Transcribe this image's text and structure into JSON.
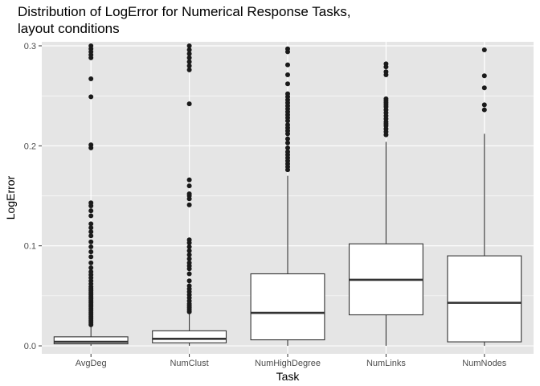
{
  "chart_data": {
    "type": "boxplot",
    "title_lines": [
      "Distribution of LogError for Numerical Response Tasks,",
      "layout conditions"
    ],
    "xlabel": "Task",
    "ylabel": "LogError",
    "ylim": [
      -0.008,
      0.304
    ],
    "y_ticks": [
      0.0,
      0.1,
      0.2,
      0.3
    ],
    "y_tick_labels": [
      "0.0",
      "0.1",
      "0.2",
      "0.3"
    ],
    "grid": true,
    "categories": [
      "AvgDeg",
      "NumClust",
      "NumHighDegree",
      "NumLinks",
      "NumNodes"
    ],
    "boxes": [
      {
        "name": "AvgDeg",
        "whisker_low": 0.0,
        "q1": 0.002,
        "median": 0.004,
        "q3": 0.009,
        "whisker_high": 0.019,
        "outliers": [
          0.021,
          0.023,
          0.025,
          0.027,
          0.029,
          0.031,
          0.033,
          0.035,
          0.037,
          0.039,
          0.041,
          0.043,
          0.045,
          0.047,
          0.049,
          0.051,
          0.053,
          0.055,
          0.057,
          0.059,
          0.062,
          0.065,
          0.068,
          0.071,
          0.074,
          0.078,
          0.083,
          0.089,
          0.094,
          0.099,
          0.104,
          0.11,
          0.114,
          0.118,
          0.122,
          0.13,
          0.135,
          0.14,
          0.143,
          0.198,
          0.201,
          0.249,
          0.267,
          0.288,
          0.291,
          0.294,
          0.297,
          0.3
        ]
      },
      {
        "name": "NumClust",
        "whisker_low": 0.0,
        "q1": 0.003,
        "median": 0.007,
        "q3": 0.015,
        "whisker_high": 0.032,
        "outliers": [
          0.034,
          0.036,
          0.038,
          0.04,
          0.042,
          0.045,
          0.048,
          0.051,
          0.054,
          0.057,
          0.06,
          0.065,
          0.072,
          0.077,
          0.08,
          0.083,
          0.087,
          0.091,
          0.095,
          0.099,
          0.103,
          0.106,
          0.141,
          0.147,
          0.15,
          0.152,
          0.16,
          0.166,
          0.242,
          0.276,
          0.28,
          0.284,
          0.288,
          0.292,
          0.296,
          0.3
        ]
      },
      {
        "name": "NumHighDegree",
        "whisker_low": 0.0,
        "q1": 0.006,
        "median": 0.033,
        "q3": 0.072,
        "whisker_high": 0.17,
        "outliers": [
          0.176,
          0.179,
          0.182,
          0.185,
          0.188,
          0.191,
          0.194,
          0.198,
          0.203,
          0.207,
          0.212,
          0.215,
          0.218,
          0.221,
          0.225,
          0.228,
          0.231,
          0.234,
          0.237,
          0.24,
          0.243,
          0.246,
          0.249,
          0.252,
          0.262,
          0.271,
          0.281,
          0.294,
          0.297
        ]
      },
      {
        "name": "NumLinks",
        "whisker_low": 0.0,
        "q1": 0.031,
        "median": 0.066,
        "q3": 0.102,
        "whisker_high": 0.204,
        "outliers": [
          0.211,
          0.214,
          0.217,
          0.22,
          0.222,
          0.224,
          0.227,
          0.23,
          0.233,
          0.236,
          0.239,
          0.241,
          0.243,
          0.245,
          0.247,
          0.271,
          0.274,
          0.279,
          0.282
        ]
      },
      {
        "name": "NumNodes",
        "whisker_low": 0.0,
        "q1": 0.004,
        "median": 0.043,
        "q3": 0.09,
        "whisker_high": 0.212,
        "outliers": [
          0.236,
          0.241,
          0.258,
          0.27,
          0.296
        ]
      }
    ]
  },
  "colors": {
    "panel_background": "#e5e5e5",
    "grid_major": "#ffffff",
    "box_fill": "#ffffff",
    "box_stroke": "#333333",
    "outlier": "#1a1a1a"
  }
}
